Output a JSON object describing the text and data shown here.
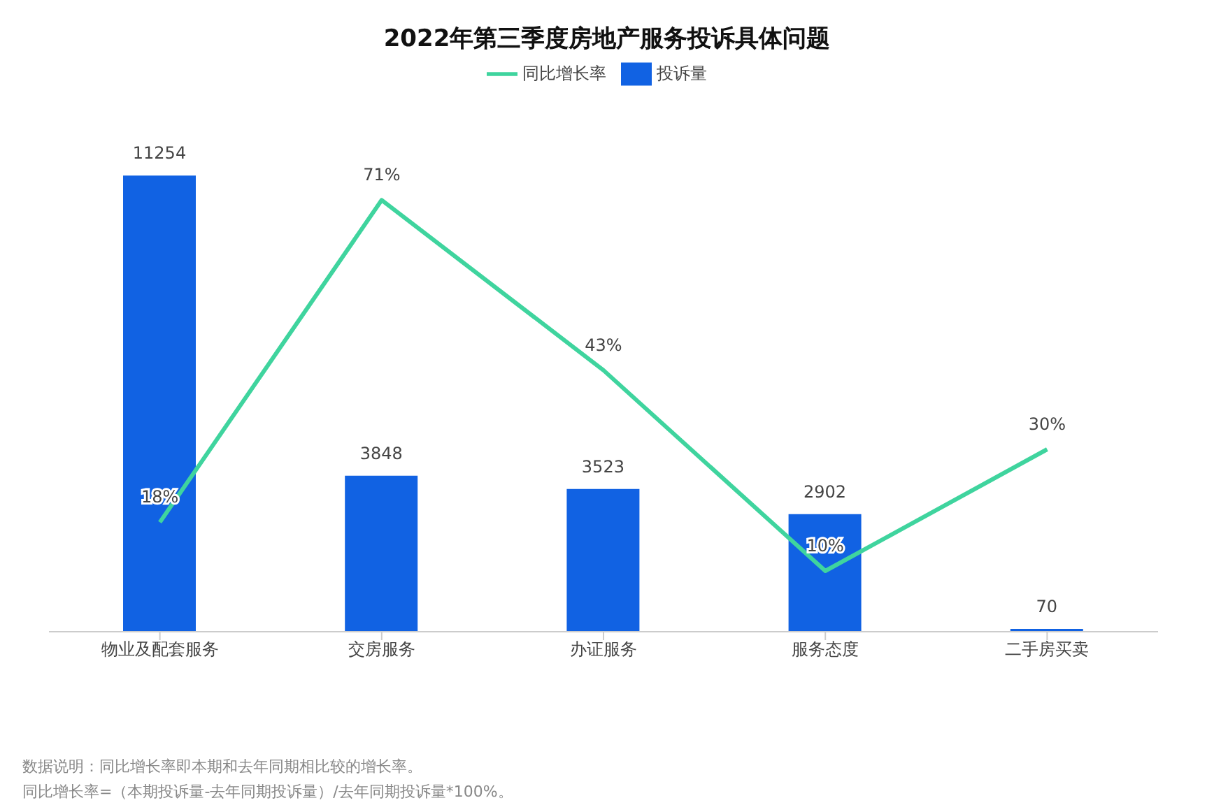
{
  "chart_data": {
    "type": "bar",
    "title": "2022年第三季度房地产服务投诉具体问题",
    "categories": [
      "物业及配套服务",
      "交房服务",
      "办证服务",
      "服务态度",
      "二手房买卖"
    ],
    "series": [
      {
        "name": "投诉量",
        "color": "#1162e3",
        "values": [
          11254,
          3848,
          3523,
          2902,
          70
        ],
        "value_labels": [
          "11254",
          "3848",
          "3523",
          "2902",
          "70"
        ]
      },
      {
        "name": "同比增长率",
        "type": "line",
        "axis": "y2",
        "color": "#3fd49e",
        "values": [
          18,
          71,
          43,
          10,
          30
        ],
        "value_labels": [
          "18%",
          "71%",
          "43%",
          "10%",
          "30%"
        ]
      }
    ],
    "legend": "top",
    "marker": "none",
    "tick_labels": "x",
    "annotations": [
      "数据说明：同比增长率即本期和去年同期相比较的增长率。",
      "同比增长率=（本期投诉量-去年同期投诉量）/去年同期投诉量*100%。"
    ]
  }
}
